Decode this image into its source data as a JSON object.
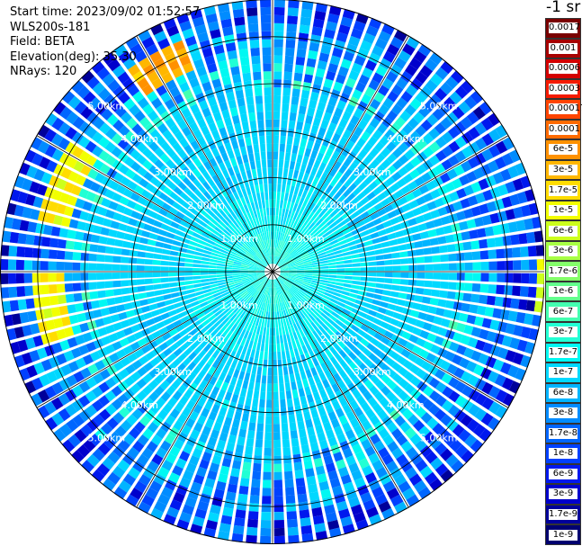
{
  "header": {
    "start_time": "Start time: 2023/09/02 01:52:57",
    "instrument": "WLS200s-181",
    "field": "Field: BETA",
    "elevation": "Elevation(deg): 35.30",
    "nrays": "NRays: 120"
  },
  "colorbar": {
    "unit_text": "-1 sr",
    "entries": [
      {
        "label": "0.0017",
        "color": "#7a0000"
      },
      {
        "label": "0.001",
        "color": "#a80000"
      },
      {
        "label": "0.0006",
        "color": "#d40000"
      },
      {
        "label": "0.0003",
        "color": "#f51a00"
      },
      {
        "label": "0.00017",
        "color": "#ff4400"
      },
      {
        "label": "0.0001",
        "color": "#ff6a00"
      },
      {
        "label": "6e-5",
        "color": "#ff9100"
      },
      {
        "label": "3e-5",
        "color": "#ffb700"
      },
      {
        "label": "1.7e-5",
        "color": "#ffdc00"
      },
      {
        "label": "1e-5",
        "color": "#f2ff00"
      },
      {
        "label": "6e-6",
        "color": "#ccff1c"
      },
      {
        "label": "3e-6",
        "color": "#a8ff44"
      },
      {
        "label": "1.7e-6",
        "color": "#84ff6a"
      },
      {
        "label": "1e-6",
        "color": "#63ff8c"
      },
      {
        "label": "6e-7",
        "color": "#44ffb0"
      },
      {
        "label": "3e-7",
        "color": "#22ffd4"
      },
      {
        "label": "1.7e-7",
        "color": "#00f8f2"
      },
      {
        "label": "1e-7",
        "color": "#00d8ff"
      },
      {
        "label": "6e-8",
        "color": "#00b4ff"
      },
      {
        "label": "3e-8",
        "color": "#008cff"
      },
      {
        "label": "1.7e-8",
        "color": "#0066ff"
      },
      {
        "label": "1e-8",
        "color": "#0040ff"
      },
      {
        "label": "6e-9",
        "color": "#0018ee"
      },
      {
        "label": "3e-9",
        "color": "#0000cc"
      },
      {
        "label": "1.7e-9",
        "color": "#00009a"
      },
      {
        "label": "1e-9",
        "color": "#000070"
      }
    ]
  },
  "chart_data": {
    "type": "heatmap",
    "projection": "polar PPI scan",
    "field": "BETA",
    "nrays": 120,
    "azimuth_spokes_deg": [
      0,
      30,
      60,
      90,
      120,
      150,
      180,
      210,
      240,
      270,
      300,
      330
    ],
    "range_rings_km": [
      1,
      2,
      3,
      4,
      5
    ],
    "ring_labels": [
      "1.00km",
      "2.00km",
      "3.00km",
      "4.00km",
      "5.00km"
    ],
    "max_range_km": 5.8,
    "colorscale_log10_range": [
      -9,
      -2.77
    ],
    "background_level_log10": -7,
    "features": [
      {
        "name": "elevated backscatter band",
        "az_start_deg": 282,
        "az_end_deg": 302,
        "range_km": 4.7,
        "value": 1e-05
      },
      {
        "name": "elevated backscatter band",
        "az_start_deg": 323,
        "az_end_deg": 338,
        "range_km": 4.9,
        "value": 3e-05
      },
      {
        "name": "elevated backscatter arc",
        "az_start_deg": 250,
        "az_end_deg": 268,
        "range_km": 4.8,
        "value": 1e-05
      },
      {
        "name": "elevated backscatter patch",
        "az_start_deg": 85,
        "az_end_deg": 96,
        "range_km": 6.0,
        "value": 6e-06
      }
    ]
  }
}
